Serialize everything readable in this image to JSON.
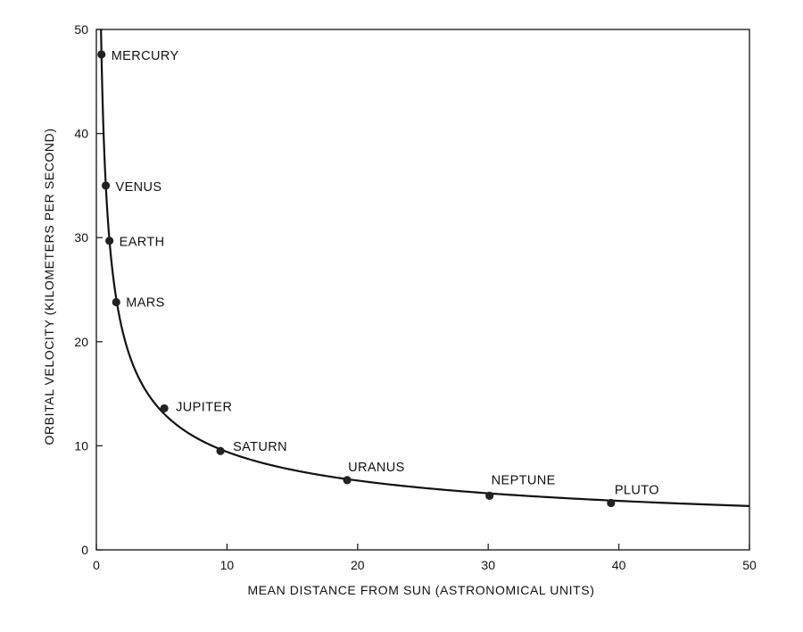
{
  "chart_data": {
    "type": "line",
    "title": "",
    "xlabel": "MEAN DISTANCE FROM SUN (ASTRONOMICAL UNITS)",
    "ylabel": "ORBITAL VELOCITY (KILOMETERS PER SECOND)",
    "xlim": [
      0,
      50
    ],
    "ylim": [
      0,
      50
    ],
    "x_ticks": [
      0,
      10,
      20,
      30,
      40,
      50
    ],
    "y_ticks": [
      0,
      10,
      20,
      30,
      40,
      50
    ],
    "grid": false,
    "curve": {
      "description_formula_constant": 29.78
    },
    "points": [
      {
        "label": "MERCURY",
        "x": 0.39,
        "y": 47.6
      },
      {
        "label": "VENUS",
        "x": 0.72,
        "y": 35.0
      },
      {
        "label": "EARTH",
        "x": 1.0,
        "y": 29.7
      },
      {
        "label": "MARS",
        "x": 1.52,
        "y": 23.8
      },
      {
        "label": "JUPITER",
        "x": 5.2,
        "y": 13.6
      },
      {
        "label": "SATURN",
        "x": 9.5,
        "y": 9.5
      },
      {
        "label": "URANUS",
        "x": 19.2,
        "y": 6.7
      },
      {
        "label": "NEPTUNE",
        "x": 30.1,
        "y": 5.2
      },
      {
        "label": "PLUTO",
        "x": 39.4,
        "y": 4.5
      }
    ],
    "colors": {
      "line": "#111111",
      "marker": "#222222"
    }
  }
}
